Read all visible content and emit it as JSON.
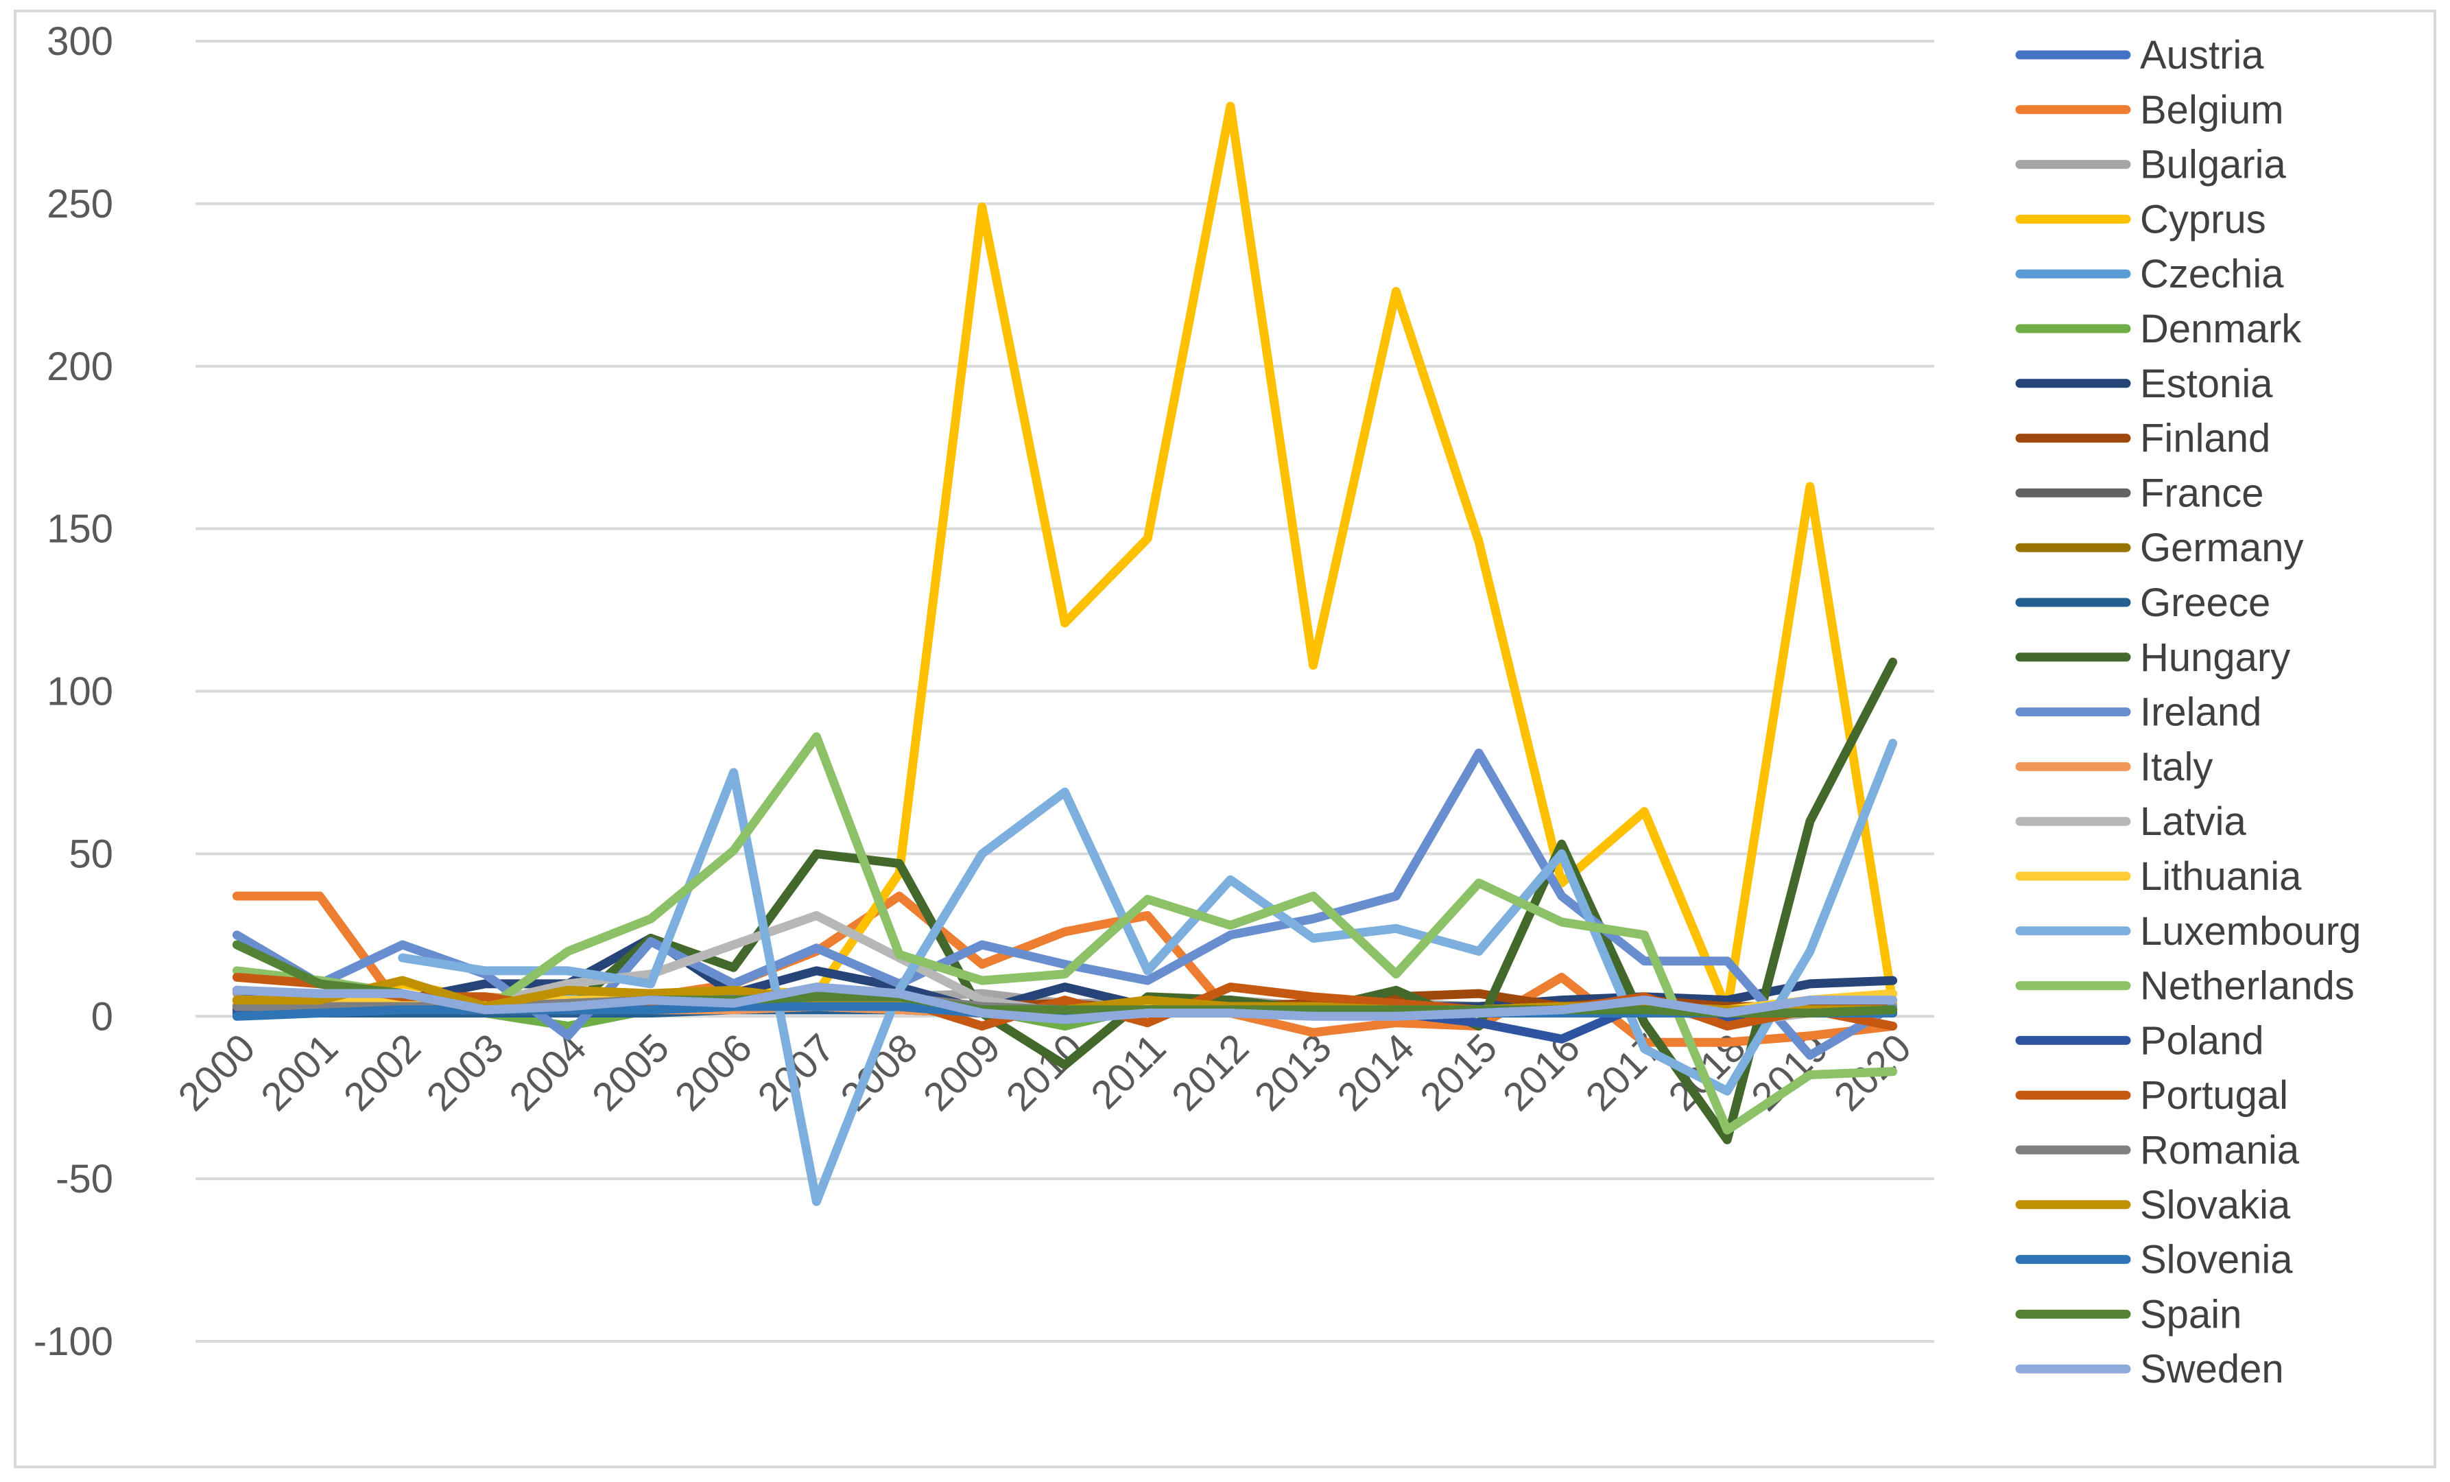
{
  "chart_data": {
    "type": "line",
    "title": "",
    "xlabel": "",
    "ylabel": "",
    "ylim": [
      -100,
      300
    ],
    "y_ticks": [
      300,
      250,
      200,
      150,
      100,
      50,
      0,
      -50,
      -100
    ],
    "grid": "horizontal",
    "legend_position": "right",
    "x": [
      "2000",
      "2001",
      "2002",
      "2003",
      "2004",
      "2005",
      "2006",
      "2007",
      "2008",
      "2009",
      "2010",
      "2011",
      "2012",
      "2013",
      "2014",
      "2015",
      "2016",
      "2017",
      "2018",
      "2019",
      "2020"
    ],
    "series": [
      {
        "name": "Austria",
        "color": "#4472C4",
        "values": [
          1,
          1,
          1,
          1,
          2,
          2,
          2,
          2,
          2,
          2,
          2,
          2,
          2,
          1,
          1,
          1,
          2,
          2,
          1,
          2,
          2
        ]
      },
      {
        "name": "Belgium",
        "color": "#ED7D31",
        "values": [
          37,
          37,
          2,
          6,
          4,
          6,
          10,
          20,
          37,
          16,
          26,
          31,
          1,
          -5,
          -2,
          -3,
          12,
          -8,
          -8,
          -6,
          -3
        ]
      },
      {
        "name": "Bulgaria",
        "color": "#A5A5A5",
        "values": [
          7,
          5,
          2,
          1,
          3,
          4,
          5,
          8,
          6,
          7,
          4,
          4,
          5,
          3,
          4,
          3,
          2,
          4,
          1,
          2,
          3
        ]
      },
      {
        "name": "Cyprus",
        "color": "#FFC000",
        "values": [
          5,
          6,
          10,
          5,
          6,
          7,
          8,
          7,
          44,
          249,
          121,
          147,
          280,
          108,
          223,
          146,
          41,
          63,
          2,
          163,
          4
        ]
      },
      {
        "name": "Czechia",
        "color": "#5B9BD5",
        "values": [
          4,
          3,
          5,
          4,
          6,
          7,
          6,
          6,
          5,
          2,
          2,
          2,
          3,
          2,
          2,
          2,
          2,
          3,
          2,
          2,
          2
        ]
      },
      {
        "name": "Denmark",
        "color": "#70AD47",
        "values": [
          2,
          3,
          1,
          1,
          -3,
          2,
          3,
          5,
          4,
          2,
          -3,
          3,
          5,
          2,
          3,
          2,
          2,
          2,
          1,
          1,
          2
        ]
      },
      {
        "name": "Estonia",
        "color": "#264478",
        "values": [
          8,
          6,
          5,
          10,
          10,
          24,
          7,
          14,
          9,
          2,
          9,
          3,
          5,
          1,
          3,
          3,
          5,
          6,
          5,
          10,
          11
        ]
      },
      {
        "name": "Finland",
        "color": "#9E480E",
        "values": [
          3,
          2,
          2,
          2,
          2,
          3,
          3,
          4,
          3,
          3,
          4,
          2,
          3,
          4,
          6,
          7,
          3,
          5,
          3,
          3,
          3
        ]
      },
      {
        "name": "France",
        "color": "#636363",
        "values": [
          3,
          3,
          3,
          2,
          2,
          3,
          3,
          4,
          4,
          2,
          2,
          2,
          2,
          2,
          2,
          2,
          2,
          3,
          2,
          2,
          2
        ]
      },
      {
        "name": "Germany",
        "color": "#997300",
        "values": [
          3,
          2,
          2,
          2,
          2,
          2,
          2,
          3,
          2,
          1,
          2,
          2,
          2,
          2,
          2,
          2,
          2,
          2,
          2,
          2,
          2
        ]
      },
      {
        "name": "Greece",
        "color": "#255E91",
        "values": [
          1,
          1,
          1,
          1,
          1,
          1,
          2,
          2,
          2,
          1,
          1,
          1,
          1,
          1,
          1,
          1,
          1,
          1,
          1,
          1,
          1
        ]
      },
      {
        "name": "Hungary",
        "color": "#43682B",
        "values": [
          5,
          4,
          3,
          3,
          2,
          24,
          15,
          50,
          47,
          1,
          -15,
          6,
          5,
          2,
          8,
          -3,
          53,
          -2,
          -38,
          60,
          109
        ]
      },
      {
        "name": "Ireland",
        "color": "#698ED0",
        "values": [
          25,
          10,
          22,
          13,
          -6,
          23,
          10,
          21,
          10,
          22,
          16,
          11,
          25,
          30,
          37,
          81,
          37,
          17,
          17,
          -12,
          3
        ]
      },
      {
        "name": "Italy",
        "color": "#F1975A",
        "values": [
          2,
          2,
          2,
          2,
          2,
          2,
          2,
          3,
          2,
          1,
          1,
          1,
          2,
          1,
          1,
          1,
          1,
          2,
          1,
          1,
          1
        ]
      },
      {
        "name": "Latvia",
        "color": "#B7B7B7",
        "values": [
          5,
          5,
          4,
          4,
          10,
          13,
          22,
          31,
          18,
          5,
          1,
          3,
          2,
          1,
          1,
          2,
          2,
          4,
          -2,
          1,
          2
        ]
      },
      {
        "name": "Lithuania",
        "color": "#FFCD33",
        "values": [
          4,
          5,
          4,
          4,
          5,
          5,
          6,
          6,
          5,
          2,
          2,
          3,
          3,
          3,
          2,
          2,
          3,
          3,
          2,
          5,
          7
        ]
      },
      {
        "name": "Luxembourg",
        "color": "#7CAFDD",
        "values": [
          null,
          null,
          18,
          14,
          14,
          10,
          75,
          -57,
          8,
          50,
          69,
          14,
          42,
          24,
          27,
          20,
          50,
          -10,
          -23,
          20,
          84
        ]
      },
      {
        "name": "Netherlands",
        "color": "#8CC168",
        "values": [
          14,
          11,
          7,
          2,
          20,
          30,
          51,
          86,
          19,
          11,
          13,
          36,
          28,
          37,
          13,
          41,
          29,
          25,
          -35,
          -18,
          -17
        ]
      },
      {
        "name": "Poland",
        "color": "#2E54A1",
        "values": [
          2,
          2,
          2,
          2,
          2,
          2,
          3,
          4,
          3,
          1,
          1,
          2,
          2,
          1,
          1,
          -2,
          -7,
          4,
          -1,
          2,
          1
        ]
      },
      {
        "name": "Portugal",
        "color": "#C65911",
        "values": [
          12,
          10,
          6,
          6,
          2,
          3,
          4,
          5,
          5,
          -3,
          5,
          -2,
          9,
          6,
          4,
          2,
          2,
          6,
          -3,
          2,
          -3
        ]
      },
      {
        "name": "Romania",
        "color": "#7F7F7F",
        "values": [
          3,
          3,
          3,
          3,
          4,
          5,
          6,
          7,
          6,
          3,
          2,
          2,
          2,
          2,
          2,
          2,
          2,
          2,
          1,
          2,
          2
        ]
      },
      {
        "name": "Slovakia",
        "color": "#BF9000",
        "values": [
          5,
          5,
          11,
          3,
          8,
          7,
          8,
          5,
          4,
          1,
          2,
          5,
          3,
          3,
          2,
          2,
          3,
          3,
          2,
          2,
          2
        ]
      },
      {
        "name": "Slovenia",
        "color": "#2F75B6",
        "values": [
          0,
          1,
          2,
          2,
          2,
          2,
          3,
          3,
          3,
          1,
          1,
          1,
          1,
          1,
          1,
          1,
          1,
          1,
          1,
          1,
          1
        ]
      },
      {
        "name": "Spain",
        "color": "#548235",
        "values": [
          22,
          10,
          7,
          2,
          3,
          5,
          5,
          6,
          6,
          2,
          2,
          2,
          2,
          2,
          2,
          2,
          2,
          2,
          1,
          1,
          2
        ]
      },
      {
        "name": "Sweden",
        "color": "#8EA9DB",
        "values": [
          8,
          7,
          7,
          2,
          3,
          5,
          4,
          9,
          7,
          1,
          -1,
          1,
          1,
          0,
          0,
          1,
          2,
          5,
          1,
          5,
          5
        ]
      }
    ]
  }
}
